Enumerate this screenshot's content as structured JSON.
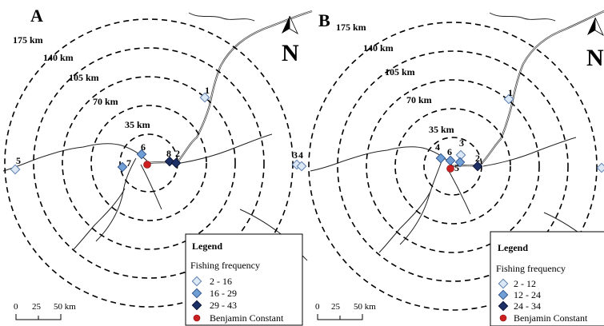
{
  "panels": [
    {
      "letter": "A",
      "ring_labels": [
        "175 km",
        "140 km",
        "105 km",
        "70 km",
        "35 km"
      ],
      "sites": [
        {
          "label": "1",
          "class": 0
        },
        {
          "label": "5",
          "class": 0
        },
        {
          "label": "6",
          "class": 1
        },
        {
          "label": "7",
          "class": 1
        },
        {
          "label": "8",
          "class": 2
        },
        {
          "label": "2",
          "class": 2
        },
        {
          "label": "3",
          "class": 0
        },
        {
          "label": "4",
          "class": 0
        }
      ],
      "legend": {
        "title": "Legend",
        "subtitle": "Fishing frequency",
        "classes": [
          "2 - 16",
          "16 - 29",
          "29 - 43"
        ],
        "town": "Benjamin Constant"
      },
      "north": "N",
      "scale": [
        "0",
        "25",
        "50 km"
      ]
    },
    {
      "letter": "B",
      "ring_labels": [
        "175 km",
        "140 km",
        "105 km",
        "70 km",
        "35 km"
      ],
      "sites": [
        {
          "label": "1",
          "class": 0
        },
        {
          "label": "4",
          "class": 1
        },
        {
          "label": "6",
          "class": 1
        },
        {
          "label": "3",
          "class": 0
        },
        {
          "label": "5",
          "class": 1
        },
        {
          "label": "2",
          "class": 2
        }
      ],
      "legend": {
        "title": "Legend",
        "subtitle": "Fishing frequency",
        "classes": [
          "2 - 12",
          "12 - 24",
          "24 - 34"
        ],
        "town": "Benjamin Constant"
      },
      "north": "N",
      "scale": [
        "0",
        "25",
        "50 km"
      ]
    }
  ],
  "colors": {
    "class_fill": [
      "#dde8f6",
      "#6f9fd4",
      "#1c2f66"
    ],
    "class_stroke": [
      "#5d7fb0",
      "#33578e",
      "#0b1536"
    ],
    "town": "#cc1f1f"
  }
}
